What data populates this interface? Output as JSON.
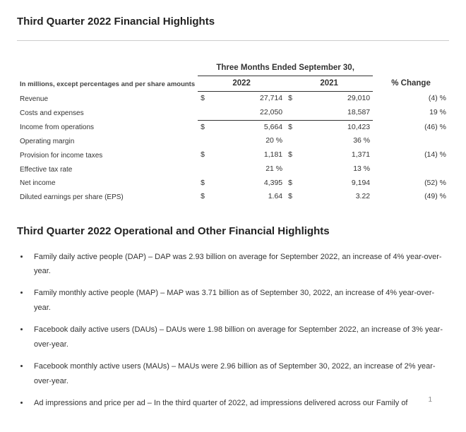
{
  "section1_title": "Third Quarter 2022 Financial Highlights",
  "table": {
    "caption": "In millions, except percentages and per share amounts",
    "super_header": "Three Months Ended September 30,",
    "year_a": "2022",
    "year_b": "2021",
    "pct_header": "% Change",
    "rows": [
      {
        "label": "Revenue",
        "curA": "$",
        "valA": "27,714",
        "curB": "$",
        "valB": "29,010",
        "pct": "(4) %",
        "topline": false
      },
      {
        "label": "Costs and expenses",
        "curA": "",
        "valA": "22,050",
        "curB": "",
        "valB": "18,587",
        "pct": "19 %",
        "topline": false
      },
      {
        "label": "Income from operations",
        "curA": "$",
        "valA": "5,664",
        "curB": "$",
        "valB": "10,423",
        "pct": "(46) %",
        "topline": true
      },
      {
        "label": "Operating margin",
        "curA": "",
        "valA": "20 %",
        "curB": "",
        "valB": "36 %",
        "pct": "",
        "topline": false
      },
      {
        "label": "Provision for income taxes",
        "curA": "$",
        "valA": "1,181",
        "curB": "$",
        "valB": "1,371",
        "pct": "(14) %",
        "topline": false
      },
      {
        "label": "Effective tax rate",
        "curA": "",
        "valA": "21 %",
        "curB": "",
        "valB": "13 %",
        "pct": "",
        "topline": false
      },
      {
        "label": "Net income",
        "curA": "$",
        "valA": "4,395",
        "curB": "$",
        "valB": "9,194",
        "pct": "(52) %",
        "topline": false
      },
      {
        "label": "Diluted earnings per share (EPS)",
        "curA": "$",
        "valA": "1.64",
        "curB": "$",
        "valB": "3.22",
        "pct": "(49) %",
        "topline": false
      }
    ]
  },
  "section2_title": "Third Quarter 2022 Operational and Other Financial Highlights",
  "bullets": [
    "Family daily active people (DAP) – DAP was 2.93 billion on average for September 2022, an increase of 4% year-over-year.",
    "Family monthly active people (MAP) – MAP was 3.71 billion as of September 30, 2022, an increase of 4% year-over-year.",
    "Facebook daily active users (DAUs) – DAUs were 1.98 billion on average for September 2022, an increase of 3% year-over-year.",
    "Facebook monthly active users (MAUs) – MAUs were 2.96 billion as of September 30, 2022, an increase of 2% year-over-year.",
    "Ad impressions and price per ad – In the third quarter of 2022, ad impressions delivered across our Family of"
  ],
  "page_number": "1",
  "colors": {
    "text": "#333333",
    "heading": "#222222",
    "rule": "#cccccc",
    "border": "#333333",
    "pagenum": "#888888",
    "background": "#ffffff"
  }
}
